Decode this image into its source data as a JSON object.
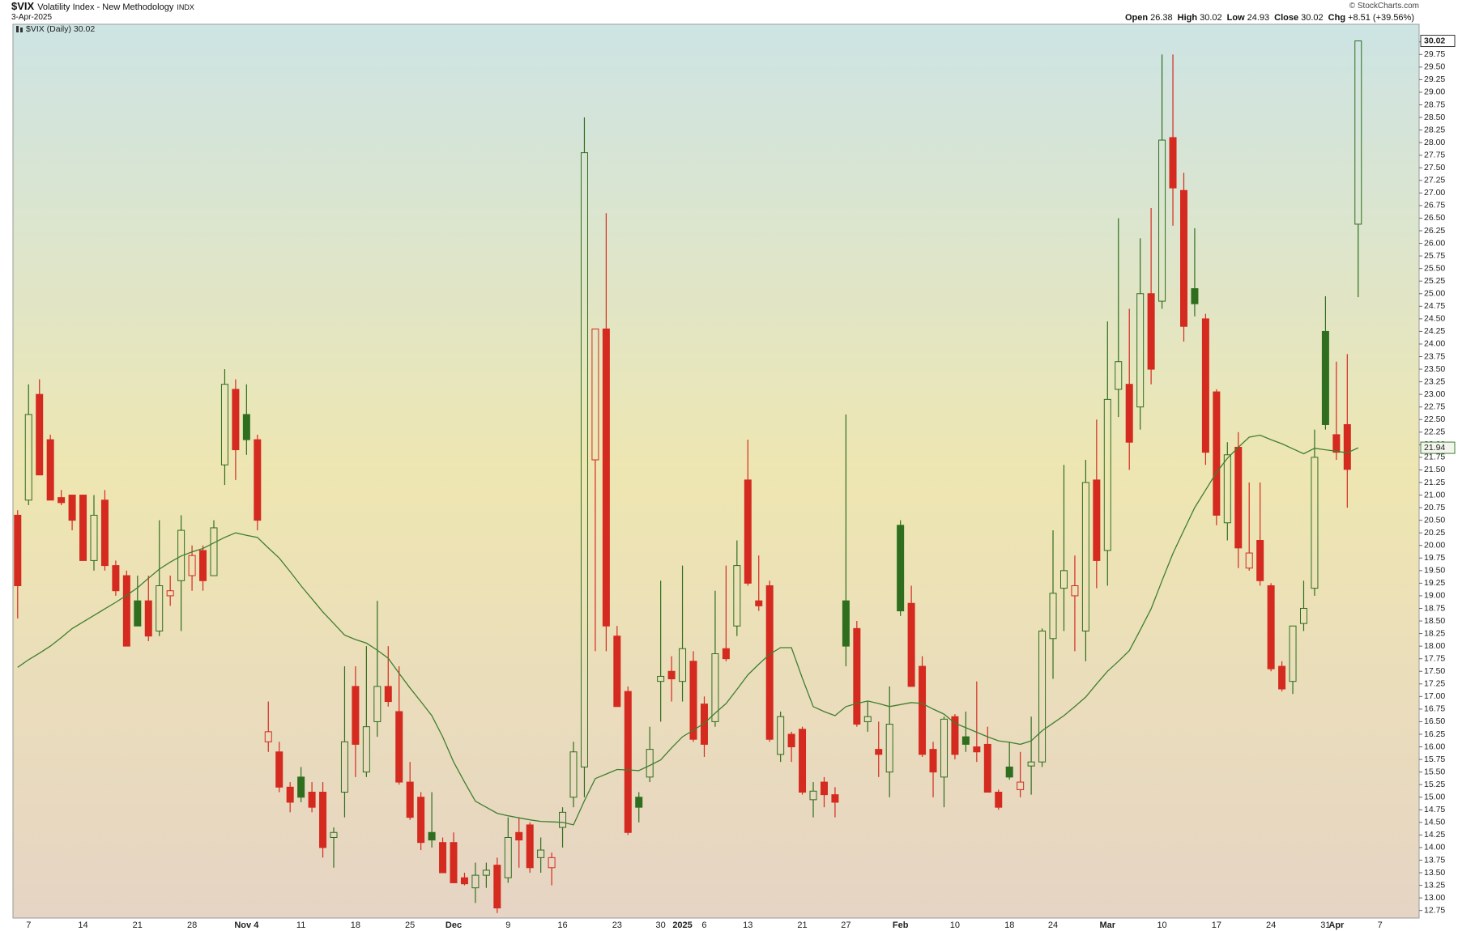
{
  "header": {
    "symbol": "$VIX",
    "name": "Volatility Index - New Methodology",
    "exchange": "INDX",
    "date": "3-Apr-2025",
    "credit": "© StockCharts.com",
    "quote": [
      {
        "label": "Open",
        "value": "26.38"
      },
      {
        "label": "High",
        "value": "30.02"
      },
      {
        "label": "Low",
        "value": "24.93"
      },
      {
        "label": "Close",
        "value": "30.02"
      },
      {
        "label": "Chg",
        "value": "+8.51 (+39.56%)"
      }
    ]
  },
  "chart_data": {
    "type": "candlestick",
    "legend": "$VIX (Daily) 30.02",
    "up_color": "#2f6e1e",
    "down_color": "#d42a1f",
    "ylim": [
      12.6,
      30.35
    ],
    "yticks": [
      12.75,
      {
        "value": 13,
        "label": "13.00"
      },
      13.25,
      {
        "value": 13.5,
        "label": "13.50"
      },
      13.75,
      {
        "value": 14,
        "label": "14.00"
      },
      14.25,
      {
        "value": 14.5,
        "label": "14.50"
      },
      14.75,
      {
        "value": 15,
        "label": "15.00"
      },
      15.25,
      {
        "value": 15.5,
        "label": "15.50"
      },
      15.75,
      {
        "value": 16,
        "label": "16.00"
      },
      16.25,
      {
        "value": 16.5,
        "label": "16.50"
      },
      16.75,
      {
        "value": 17,
        "label": "17.00"
      },
      17.25,
      {
        "value": 17.5,
        "label": "17.50"
      },
      17.75,
      {
        "value": 18,
        "label": "18.00"
      },
      18.25,
      {
        "value": 18.5,
        "label": "18.50"
      },
      18.75,
      {
        "value": 19,
        "label": "19.00"
      },
      19.25,
      {
        "value": 19.5,
        "label": "19.50"
      },
      19.75,
      {
        "value": 20,
        "label": "20.00"
      },
      20.25,
      {
        "value": 20.5,
        "label": "20.50"
      },
      20.75,
      {
        "value": 21,
        "label": "21.00"
      },
      21.25,
      {
        "value": 21.5,
        "label": "21.50"
      },
      21.75,
      {
        "value": 22,
        "label": "22.00"
      },
      22.25,
      {
        "value": 22.5,
        "label": "22.50"
      },
      22.75,
      {
        "value": 23,
        "label": "23.00"
      },
      23.25,
      {
        "value": 23.5,
        "label": "23.50"
      },
      23.75,
      {
        "value": 24,
        "label": "24.00"
      },
      24.25,
      {
        "value": 24.5,
        "label": "24.50"
      },
      24.75,
      {
        "value": 25,
        "label": "25.00"
      },
      25.25,
      {
        "value": 25.5,
        "label": "25.50"
      },
      25.75,
      {
        "value": 26,
        "label": "26.00"
      },
      26.25,
      {
        "value": 26.5,
        "label": "26.50"
      },
      26.75,
      {
        "value": 27,
        "label": "27.00"
      },
      27.25,
      {
        "value": 27.5,
        "label": "27.50"
      },
      27.75,
      {
        "value": 28,
        "label": "28.00"
      },
      28.25,
      {
        "value": 28.5,
        "label": "28.50"
      },
      28.75,
      {
        "value": 29,
        "label": "29.00"
      },
      29.25,
      {
        "value": 29.5,
        "label": "29.50"
      },
      29.75,
      {
        "value": 30,
        "label": "30.00"
      }
    ],
    "categories": [
      null,
      "7",
      null,
      null,
      null,
      null,
      "14",
      null,
      null,
      null,
      null,
      "21",
      null,
      null,
      null,
      null,
      "28",
      null,
      null,
      null,
      null,
      "Nov 4",
      null,
      null,
      null,
      null,
      "11",
      null,
      null,
      null,
      null,
      "18",
      null,
      null,
      null,
      null,
      "25",
      null,
      null,
      null,
      "Dec",
      null,
      null,
      null,
      null,
      "9",
      null,
      null,
      null,
      null,
      "16",
      null,
      null,
      null,
      null,
      "23",
      null,
      null,
      null,
      "30",
      null,
      "2025",
      null,
      "6",
      null,
      null,
      null,
      "13",
      null,
      null,
      null,
      null,
      "21",
      null,
      null,
      null,
      "27",
      null,
      null,
      null,
      null,
      "Feb",
      null,
      null,
      null,
      null,
      "10",
      null,
      null,
      null,
      null,
      "18",
      null,
      null,
      null,
      "24",
      null,
      null,
      null,
      null,
      "Mar",
      null,
      null,
      null,
      null,
      "10",
      null,
      null,
      null,
      null,
      "17",
      null,
      null,
      null,
      null,
      "24",
      null,
      null,
      null,
      null,
      "31",
      "Apr",
      null,
      null,
      null,
      "7"
    ],
    "open": [
      20.6,
      20.9,
      23.0,
      22.1,
      20.95,
      21.0,
      21.0,
      19.7,
      20.9,
      19.6,
      19.4,
      18.9,
      18.9,
      18.3,
      19.0,
      19.3,
      19.4,
      19.9,
      19.4,
      21.6,
      23.1,
      22.6,
      22.1,
      16.1,
      15.9,
      15.2,
      15.4,
      15.1,
      15.1,
      14.2,
      15.1,
      17.2,
      15.5,
      16.5,
      17.2,
      16.7,
      15.3,
      15.0,
      14.3,
      14.1,
      14.1,
      13.4,
      13.2,
      13.45,
      13.65,
      13.4,
      14.3,
      14.45,
      13.8,
      13.6,
      14.4,
      15.0,
      15.6,
      21.7,
      24.3,
      18.2,
      17.1,
      15.0,
      15.4,
      17.3,
      17.5,
      17.3,
      17.7,
      16.85,
      16.5,
      17.95,
      18.4,
      21.3,
      18.9,
      19.2,
      15.85,
      16.25,
      16.35,
      14.95,
      15.3,
      15.05,
      18.9,
      18.35,
      16.5,
      15.95,
      15.5,
      20.4,
      18.85,
      17.6,
      15.95,
      15.4,
      16.6,
      16.2,
      16.0,
      16.05,
      15.1,
      15.6,
      15.15,
      15.62,
      15.7,
      18.15,
      19.15,
      19.0,
      18.3,
      21.3,
      19.9,
      23.1,
      23.2,
      22.75,
      25.0,
      24.85,
      28.1,
      27.05,
      25.1,
      24.5,
      23.05,
      20.45,
      21.95,
      19.55,
      20.1,
      19.2,
      17.6,
      17.3,
      18.45,
      19.15,
      24.25,
      22.2,
      22.4,
      26.38,
      null,
      null
    ],
    "high": [
      20.7,
      23.2,
      23.3,
      22.2,
      21.1,
      21.0,
      21.0,
      21.0,
      21.1,
      19.7,
      19.5,
      19.4,
      19.4,
      20.5,
      19.4,
      20.6,
      20.0,
      20.0,
      20.5,
      23.5,
      23.3,
      23.2,
      22.2,
      16.9,
      16.1,
      15.3,
      15.6,
      15.3,
      15.3,
      14.4,
      17.6,
      17.6,
      18.0,
      18.9,
      18.0,
      17.6,
      15.7,
      15.1,
      15.1,
      14.2,
      14.3,
      13.5,
      13.7,
      13.7,
      13.8,
      14.6,
      14.6,
      14.5,
      14.2,
      13.9,
      14.8,
      16.1,
      28.5,
      24.3,
      26.6,
      18.4,
      17.2,
      15.1,
      16.4,
      19.3,
      17.8,
      19.6,
      17.9,
      17.0,
      19.1,
      19.6,
      20.1,
      22.1,
      19.8,
      19.3,
      16.7,
      16.3,
      16.4,
      15.3,
      15.4,
      15.2,
      22.6,
      18.5,
      16.9,
      16.5,
      17.2,
      20.5,
      19.2,
      17.8,
      16.1,
      16.6,
      16.65,
      16.7,
      17.3,
      16.4,
      15.15,
      16.1,
      15.9,
      16.6,
      18.35,
      20.3,
      21.6,
      19.8,
      21.7,
      22.5,
      24.45,
      26.5,
      24.7,
      26.1,
      26.7,
      29.75,
      29.75,
      27.4,
      26.3,
      24.6,
      23.1,
      22.05,
      22.25,
      21.25,
      21.25,
      19.25,
      17.7,
      18.4,
      19.3,
      22.3,
      24.95,
      23.65,
      23.8,
      30.02,
      null,
      null
    ],
    "low": [
      18.55,
      20.8,
      21.4,
      20.9,
      20.8,
      20.3,
      19.7,
      19.5,
      19.5,
      19.0,
      18.0,
      18.4,
      18.1,
      18.2,
      18.8,
      18.3,
      19.1,
      19.1,
      19.4,
      21.2,
      21.3,
      21.8,
      20.3,
      15.9,
      15.1,
      14.7,
      14.9,
      14.7,
      13.8,
      13.6,
      14.6,
      15.4,
      15.4,
      16.2,
      16.8,
      15.25,
      14.55,
      13.95,
      14.0,
      13.5,
      13.3,
      13.25,
      12.9,
      13.2,
      12.7,
      13.3,
      13.6,
      13.5,
      13.5,
      13.25,
      14.0,
      14.8,
      15.0,
      17.9,
      17.9,
      16.8,
      14.25,
      14.5,
      15.3,
      16.5,
      16.9,
      16.9,
      16.1,
      15.8,
      16.4,
      17.7,
      18.2,
      19.2,
      18.7,
      16.1,
      15.7,
      15.7,
      15.05,
      14.6,
      14.8,
      14.6,
      17.6,
      16.4,
      16.3,
      15.4,
      15.0,
      18.6,
      17.2,
      15.8,
      15.0,
      14.8,
      15.75,
      15.9,
      15.7,
      15.1,
      14.75,
      15.35,
      15.0,
      15.05,
      15.6,
      17.35,
      18.3,
      17.9,
      17.7,
      19.15,
      19.2,
      22.55,
      21.5,
      22.3,
      23.2,
      24.7,
      26.35,
      24.05,
      24.55,
      21.6,
      20.4,
      20.1,
      19.55,
      19.5,
      19.2,
      17.5,
      17.1,
      17.05,
      18.3,
      19.0,
      22.3,
      21.7,
      20.75,
      24.93,
      null,
      null
    ],
    "close": [
      19.2,
      22.6,
      21.4,
      20.9,
      20.85,
      20.5,
      19.7,
      20.6,
      19.6,
      19.1,
      18.0,
      18.4,
      18.2,
      19.2,
      19.1,
      20.3,
      19.8,
      19.3,
      20.35,
      23.2,
      21.9,
      22.1,
      20.5,
      16.3,
      15.2,
      14.9,
      15.0,
      14.8,
      14.0,
      14.3,
      16.1,
      16.05,
      16.4,
      17.2,
      16.9,
      15.3,
      14.6,
      14.1,
      14.15,
      13.5,
      13.3,
      13.28,
      13.45,
      13.55,
      12.8,
      14.2,
      14.15,
      13.6,
      13.95,
      13.8,
      14.7,
      15.9,
      27.8,
      24.3,
      18.4,
      16.8,
      14.3,
      14.8,
      15.95,
      17.4,
      17.35,
      17.95,
      16.15,
      16.05,
      17.85,
      17.75,
      19.6,
      19.25,
      18.8,
      16.15,
      16.6,
      16.0,
      15.1,
      15.12,
      15.05,
      14.9,
      18.0,
      16.45,
      16.6,
      15.85,
      16.45,
      18.7,
      17.2,
      15.85,
      15.5,
      16.55,
      15.85,
      16.05,
      15.9,
      15.1,
      14.8,
      15.4,
      15.3,
      15.7,
      18.3,
      19.05,
      19.5,
      19.2,
      21.25,
      19.7,
      22.9,
      23.65,
      22.05,
      25.0,
      23.5,
      28.05,
      27.1,
      24.35,
      24.8,
      21.85,
      20.6,
      21.8,
      19.95,
      19.85,
      19.3,
      17.55,
      17.15,
      18.4,
      18.75,
      21.75,
      22.4,
      21.85,
      21.51,
      30.02,
      null,
      null
    ],
    "moving_average": {
      "color": "#3f7f2f",
      "values": [
        17.58,
        17.73,
        17.86,
        18.0,
        18.17,
        18.35,
        18.48,
        18.61,
        18.74,
        18.87,
        19.01,
        19.16,
        19.35,
        19.53,
        19.67,
        19.79,
        19.87,
        19.94,
        20.05,
        20.16,
        20.25,
        20.2,
        20.16,
        19.95,
        19.75,
        19.48,
        19.2,
        18.94,
        18.68,
        18.45,
        18.22,
        18.13,
        18.06,
        17.92,
        17.76,
        17.46,
        17.17,
        16.9,
        16.62,
        16.2,
        15.7,
        15.3,
        14.92,
        14.8,
        14.68,
        14.63,
        14.59,
        14.55,
        14.52,
        14.51,
        14.5,
        14.45,
        14.93,
        15.37,
        15.46,
        15.55,
        15.54,
        15.53,
        15.63,
        15.74,
        15.98,
        16.2,
        16.33,
        16.47,
        16.67,
        16.86,
        17.14,
        17.43,
        17.64,
        17.84,
        17.97,
        17.97,
        17.36,
        16.8,
        16.7,
        16.62,
        16.8,
        16.86,
        16.91,
        16.86,
        16.8,
        16.84,
        16.88,
        16.86,
        16.75,
        16.65,
        16.47,
        16.38,
        16.29,
        16.2,
        16.12,
        16.09,
        16.05,
        16.12,
        16.32,
        16.47,
        16.62,
        16.8,
        16.99,
        17.25,
        17.5,
        17.7,
        17.91,
        18.32,
        18.74,
        19.3,
        19.84,
        20.3,
        20.75,
        21.1,
        21.45,
        21.73,
        21.95,
        22.15,
        22.19,
        22.1,
        22.02,
        21.92,
        21.82,
        21.93,
        21.9,
        21.87,
        21.84,
        21.94,
        null,
        null
      ]
    }
  }
}
